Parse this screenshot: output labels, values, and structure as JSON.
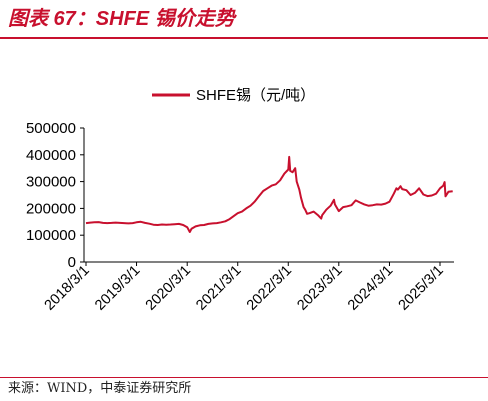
{
  "colors": {
    "accent": "#c8102e",
    "series": "#c8102e",
    "axis": "#000000"
  },
  "source": "来源：WIND，中泰证券研究所",
  "chart_data": {
    "type": "line",
    "title": "图表 67：SHFE 锡价走势",
    "x_ticks": [
      "2018/3/1",
      "2019/3/1",
      "2020/3/1",
      "2021/3/1",
      "2022/3/1",
      "2023/3/1",
      "2024/3/1",
      "2025/3/1"
    ],
    "y_ticks": [
      "0",
      "100000",
      "200000",
      "300000",
      "400000",
      "500000"
    ],
    "ylim": [
      0,
      500000
    ],
    "xlim": [
      "2018/3/1",
      "2025/6/1"
    ],
    "grid": false,
    "legend_position": "top-center",
    "series": [
      {
        "name": "SHFE锡（元/吨）",
        "color": "#c8102e",
        "x": [
          "2018/3/1",
          "2018/4/1",
          "2018/5/1",
          "2018/6/1",
          "2018/7/1",
          "2018/8/1",
          "2018/9/1",
          "2018/10/1",
          "2018/11/1",
          "2018/12/1",
          "2019/1/1",
          "2019/2/1",
          "2019/3/1",
          "2019/4/1",
          "2019/5/1",
          "2019/6/1",
          "2019/7/1",
          "2019/8/1",
          "2019/9/1",
          "2019/10/1",
          "2019/11/1",
          "2019/12/1",
          "2020/1/1",
          "2020/2/1",
          "2020/3/1",
          "2020/3/20",
          "2020/4/1",
          "2020/5/1",
          "2020/6/1",
          "2020/7/1",
          "2020/8/1",
          "2020/9/1",
          "2020/10/1",
          "2020/11/1",
          "2020/12/1",
          "2021/1/1",
          "2021/2/1",
          "2021/3/1",
          "2021/4/1",
          "2021/5/1",
          "2021/6/1",
          "2021/7/1",
          "2021/8/1",
          "2021/9/1",
          "2021/10/1",
          "2021/11/1",
          "2021/12/1",
          "2022/1/1",
          "2022/2/1",
          "2022/3/1",
          "2022/3/8",
          "2022/3/15",
          "2022/4/1",
          "2022/4/20",
          "2022/5/1",
          "2022/5/20",
          "2022/6/1",
          "2022/6/20",
          "2022/7/1",
          "2022/7/15",
          "2022/8/1",
          "2022/9/1",
          "2022/10/1",
          "2022/10/25",
          "2022/11/1",
          "2022/12/1",
          "2023/1/1",
          "2023/1/25",
          "2023/2/1",
          "2023/3/1",
          "2023/4/1",
          "2023/5/1",
          "2023/6/1",
          "2023/7/1",
          "2023/8/1",
          "2023/9/1",
          "2023/10/1",
          "2023/11/1",
          "2023/12/1",
          "2024/1/1",
          "2024/2/1",
          "2024/3/1",
          "2024/4/1",
          "2024/4/20",
          "2024/5/1",
          "2024/5/20",
          "2024/6/1",
          "2024/7/1",
          "2024/8/1",
          "2024/9/1",
          "2024/10/1",
          "2024/11/1",
          "2024/12/1",
          "2025/1/1",
          "2025/2/1",
          "2025/3/1",
          "2025/3/25",
          "2025/4/3",
          "2025/4/10",
          "2025/5/1",
          "2025/6/1"
        ],
        "y": [
          145000,
          147000,
          148000,
          149000,
          146000,
          145000,
          146000,
          147000,
          146000,
          145000,
          144000,
          145000,
          148000,
          150000,
          146000,
          143000,
          139000,
          138000,
          140000,
          139000,
          140000,
          141000,
          142000,
          138000,
          130000,
          112000,
          124000,
          133000,
          137000,
          138000,
          142000,
          144000,
          145000,
          148000,
          152000,
          160000,
          172000,
          182000,
          188000,
          200000,
          210000,
          225000,
          245000,
          265000,
          275000,
          285000,
          290000,
          305000,
          330000,
          345000,
          392000,
          340000,
          335000,
          350000,
          300000,
          270000,
          240000,
          205000,
          195000,
          180000,
          182000,
          188000,
          175000,
          162000,
          175000,
          195000,
          210000,
          232000,
          215000,
          190000,
          205000,
          208000,
          212000,
          230000,
          222000,
          215000,
          210000,
          212000,
          215000,
          214000,
          218000,
          225000,
          255000,
          275000,
          270000,
          283000,
          272000,
          268000,
          250000,
          258000,
          275000,
          252000,
          246000,
          248000,
          255000,
          275000,
          285000,
          298000,
          245000,
          262000,
          264000
        ]
      }
    ]
  }
}
